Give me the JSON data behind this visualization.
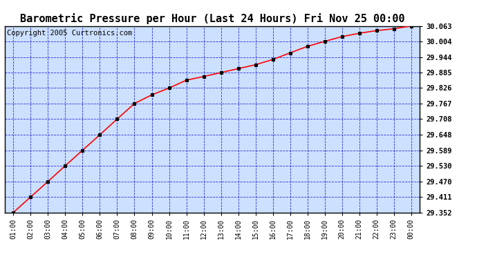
{
  "title": "Barometric Pressure per Hour (Last 24 Hours) Fri Nov 25 00:00",
  "copyright": "Copyright 2005 Curtronics.com",
  "x_labels": [
    "01:00",
    "02:00",
    "03:00",
    "04:00",
    "05:00",
    "06:00",
    "07:00",
    "08:00",
    "09:00",
    "10:00",
    "11:00",
    "12:00",
    "13:00",
    "14:00",
    "15:00",
    "16:00",
    "17:00",
    "18:00",
    "19:00",
    "20:00",
    "21:00",
    "22:00",
    "23:00",
    "00:00"
  ],
  "data_values": [
    29.352,
    29.411,
    29.47,
    29.53,
    29.589,
    29.648,
    29.708,
    29.767,
    29.8,
    29.826,
    29.856,
    29.87,
    29.885,
    29.9,
    29.915,
    29.935,
    29.96,
    29.985,
    30.004,
    30.022,
    30.035,
    30.045,
    30.052,
    30.063
  ],
  "y_ticks": [
    29.352,
    29.411,
    29.47,
    29.53,
    29.589,
    29.648,
    29.708,
    29.767,
    29.826,
    29.885,
    29.944,
    30.004,
    30.063
  ],
  "y_min": 29.352,
  "y_max": 30.063,
  "line_color": "#ff0000",
  "marker_color": "#000000",
  "bg_color": "#ffffff",
  "plot_bg_color": "#cce0ff",
  "grid_color": "#0000cc",
  "title_color": "#000000",
  "border_color": "#000000",
  "title_fontsize": 11,
  "tick_fontsize": 7,
  "copyright_fontsize": 7.5
}
